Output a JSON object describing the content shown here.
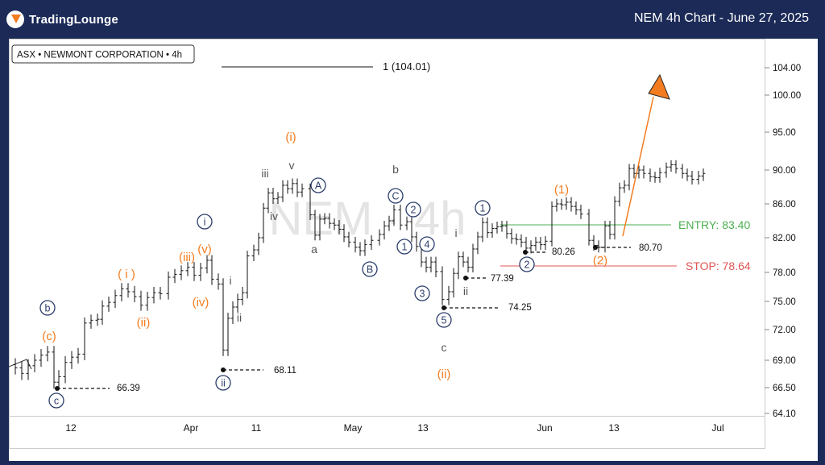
{
  "header": {
    "brand": "TradingLounge",
    "title": "NEM 4h Chart - June 27, 2025"
  },
  "chart_data": {
    "type": "candlestick",
    "symbol_box": "ASX • NEWMONT CORPORATION • 4h",
    "watermark": "NEM · 4h",
    "y_ticks": [
      64.1,
      66.5,
      69.0,
      72.0,
      75.0,
      78.0,
      82.0,
      86.0,
      90.0,
      95.0,
      100.0,
      104.0
    ],
    "x_ticks": [
      "12",
      "Apr",
      "11",
      "May",
      "13",
      "Jun",
      "13",
      "Jul"
    ],
    "fib_label": "1 (104.01)",
    "entry": {
      "label": "ENTRY: 83.40",
      "value": 83.4,
      "color": "#4caf50"
    },
    "stop": {
      "label": "STOP: 78.64",
      "value": 78.64,
      "color": "#e05555"
    },
    "price_markers": [
      {
        "label": "66.39",
        "value": 66.39
      },
      {
        "label": "68.11",
        "value": 68.11
      },
      {
        "label": "74.25",
        "value": 74.25
      },
      {
        "label": "77.39",
        "value": 77.39
      },
      {
        "label": "80.26",
        "value": 80.26
      },
      {
        "label": "80.70",
        "value": 80.7
      }
    ],
    "waves": {
      "orange": [
        "(i)",
        "(c)",
        "( i )",
        "(ii)",
        "(iii)",
        "(v)",
        "(iv)",
        "( i )",
        "(ii)",
        "(1)",
        "(2)"
      ],
      "navy": [
        "b",
        "c",
        "i",
        "ii",
        "A",
        "B",
        "C",
        "1",
        "2",
        "3",
        "4",
        "5",
        "1",
        "2"
      ],
      "gray": [
        "iii",
        "v",
        "iv",
        "a",
        "b",
        "i",
        "ii",
        "c",
        "i",
        "ii"
      ]
    }
  }
}
